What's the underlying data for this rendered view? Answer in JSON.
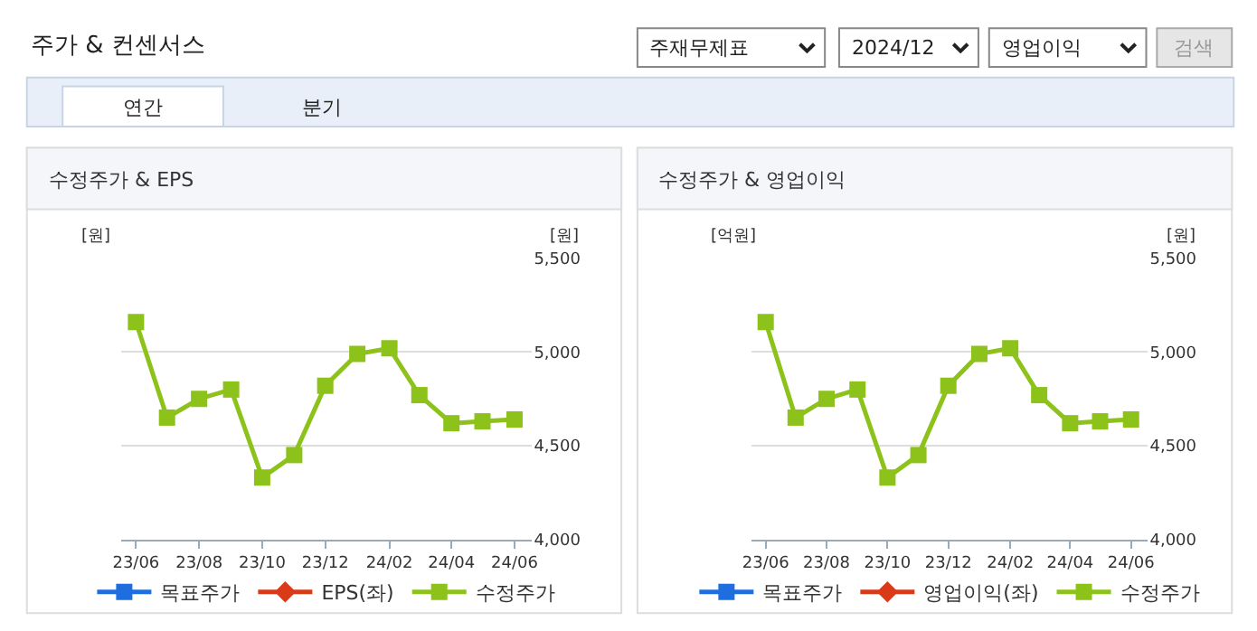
{
  "chart_data": [
    {
      "type": "other",
      "title": "주가 & 컨센서스",
      "annotations": [
        "주재무제표",
        "2024/12",
        "영업이익",
        "검색",
        "연간",
        "분기"
      ]
    },
    {
      "type": "line",
      "title": "수정주가 & EPS",
      "ylabel": "[원]",
      "annotations": [
        "[원]"
      ],
      "x": [
        "2023-06",
        "2023-07",
        "2023-08",
        "2023-09",
        "2023-10",
        "2023-11",
        "2023-12",
        "2024-01",
        "2024-02",
        "2024-03",
        "2024-04",
        "2024-05",
        "2024-06"
      ],
      "xlim": [
        "2023-05-18",
        "2024-06-18"
      ],
      "xticks": [
        {
          "value": "2023-06",
          "label": "23/06"
        },
        {
          "value": "2023-08",
          "label": "23/08"
        },
        {
          "value": "2023-10",
          "label": "23/10"
        },
        {
          "value": "2023-12",
          "label": "23/12"
        },
        {
          "value": "2024-02",
          "label": "24/02"
        },
        {
          "value": "2024-04",
          "label": "24/04"
        },
        {
          "value": "2024-06",
          "label": "24/06"
        }
      ],
      "ylim": [
        4000,
        5500
      ],
      "yticks": [
        {
          "value": 4000,
          "label": "4,000"
        },
        {
          "value": 4500,
          "label": "4,500"
        },
        {
          "value": 5000,
          "label": "5,000"
        },
        {
          "value": 5500,
          "label": "5,500"
        }
      ],
      "grid": "y",
      "legend": "bottom",
      "line_style": "solid",
      "series": [
        {
          "name": "목표주가",
          "color": "#1f6ee0",
          "marker": "square",
          "values": [
            null,
            null,
            null,
            null,
            null,
            null,
            null,
            null,
            null,
            null,
            null,
            null,
            null
          ]
        },
        {
          "name": "EPS(좌)",
          "color": "#d93a1a",
          "marker": "diamond",
          "values": [
            null,
            null,
            null,
            null,
            null,
            null,
            null,
            null,
            null,
            null,
            null,
            null,
            null
          ]
        },
        {
          "name": "수정주가",
          "color": "#8cc21a",
          "marker": "square",
          "values": [
            5160,
            4650,
            4750,
            4800,
            4330,
            4450,
            4820,
            4990,
            5020,
            4770,
            4620,
            4630,
            4640
          ]
        }
      ]
    },
    {
      "type": "line",
      "title": "수정주가 & 영업이익",
      "ylabel": "[원]",
      "annotations": [
        "[억원]"
      ],
      "x": [
        "2023-06",
        "2023-07",
        "2023-08",
        "2023-09",
        "2023-10",
        "2023-11",
        "2023-12",
        "2024-01",
        "2024-02",
        "2024-03",
        "2024-04",
        "2024-05",
        "2024-06"
      ],
      "xlim": [
        "2023-05-18",
        "2024-06-18"
      ],
      "xticks": [
        {
          "value": "2023-06",
          "label": "23/06"
        },
        {
          "value": "2023-08",
          "label": "23/08"
        },
        {
          "value": "2023-10",
          "label": "23/10"
        },
        {
          "value": "2023-12",
          "label": "23/12"
        },
        {
          "value": "2024-02",
          "label": "24/02"
        },
        {
          "value": "2024-04",
          "label": "24/04"
        },
        {
          "value": "2024-06",
          "label": "24/06"
        }
      ],
      "ylim": [
        4000,
        5500
      ],
      "yticks": [
        {
          "value": 4000,
          "label": "4,000"
        },
        {
          "value": 4500,
          "label": "4,500"
        },
        {
          "value": 5000,
          "label": "5,000"
        },
        {
          "value": 5500,
          "label": "5,500"
        }
      ],
      "grid": "y",
      "legend": "bottom",
      "line_style": "solid",
      "series": [
        {
          "name": "목표주가",
          "color": "#1f6ee0",
          "marker": "square",
          "values": [
            null,
            null,
            null,
            null,
            null,
            null,
            null,
            null,
            null,
            null,
            null,
            null,
            null
          ]
        },
        {
          "name": "영업이익(좌)",
          "color": "#d93a1a",
          "marker": "diamond",
          "values": [
            null,
            null,
            null,
            null,
            null,
            null,
            null,
            null,
            null,
            null,
            null,
            null,
            null
          ]
        },
        {
          "name": "수정주가",
          "color": "#8cc21a",
          "marker": "square",
          "values": [
            5160,
            4650,
            4750,
            4800,
            4330,
            4450,
            4820,
            4990,
            5020,
            4770,
            4620,
            4630,
            4640
          ]
        }
      ]
    }
  ]
}
